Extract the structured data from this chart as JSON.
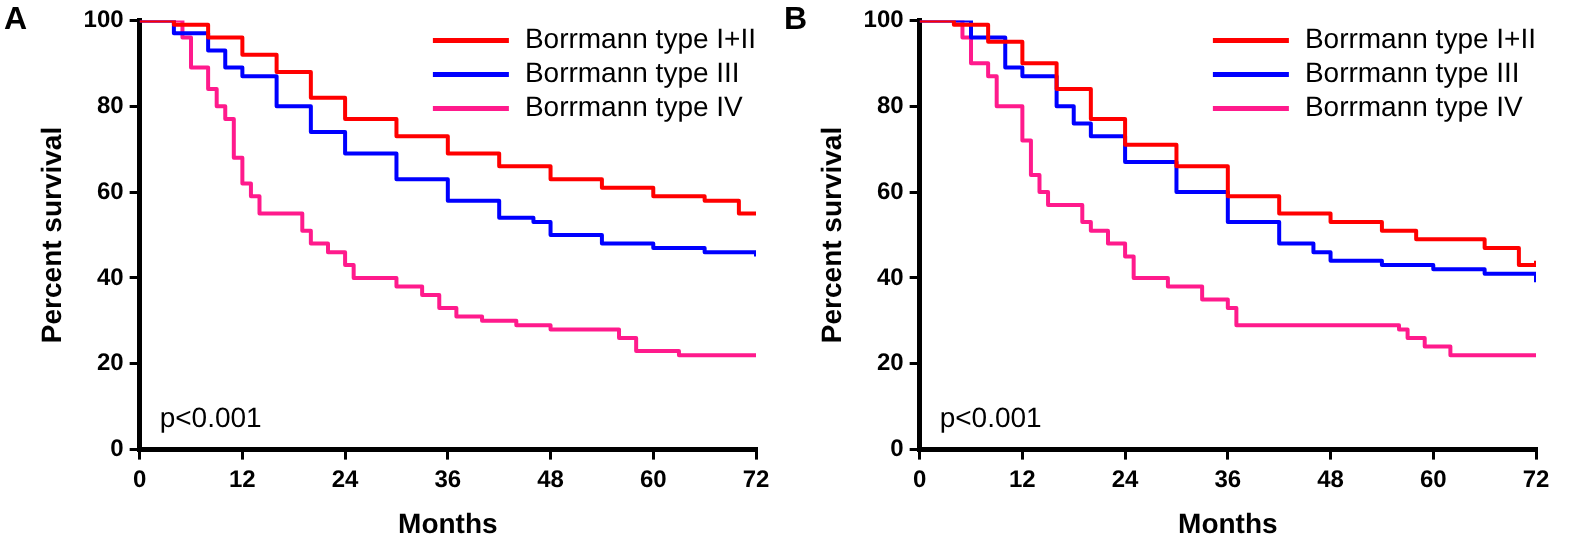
{
  "chart_data": [
    {
      "type": "step",
      "title": "A",
      "xlabel": "Months",
      "ylabel": "Percent survival",
      "annotations": [
        "p<0.001"
      ],
      "xlim": [
        0,
        72
      ],
      "xticks": [
        0,
        12,
        24,
        36,
        48,
        60,
        72
      ],
      "ylim": [
        0,
        100
      ],
      "yticks": [
        0,
        20,
        40,
        60,
        80,
        100
      ],
      "grid": false,
      "legend": "top right",
      "series": [
        {
          "name": "Borrmann type I+II",
          "color": "#ff0000",
          "x": [
            0,
            4,
            8,
            12,
            16,
            20,
            24,
            30,
            36,
            42,
            48,
            54,
            60,
            66,
            70,
            72
          ],
          "values": [
            100,
            99,
            96,
            92,
            88,
            82,
            77,
            73,
            69,
            66,
            63,
            61,
            59,
            58,
            55,
            55
          ]
        },
        {
          "name": "Borrmann type III",
          "color": "#0000ff",
          "x": [
            0,
            4,
            8,
            10,
            12,
            16,
            20,
            24,
            30,
            36,
            42,
            46,
            48,
            54,
            60,
            66,
            72
          ],
          "values": [
            100,
            97,
            93,
            89,
            87,
            80,
            74,
            69,
            63,
            58,
            54,
            53,
            50,
            48,
            47,
            46,
            45
          ]
        },
        {
          "name": "Borrmann type IV",
          "color": "#ff1a8c",
          "x": [
            0,
            5,
            6,
            8,
            9,
            10,
            11,
            12,
            13,
            14,
            18,
            19,
            20,
            22,
            24,
            25,
            30,
            33,
            35,
            37,
            40,
            44,
            48,
            56,
            58,
            63,
            72
          ],
          "values": [
            100,
            96,
            89,
            84,
            80,
            77,
            68,
            62,
            59,
            55,
            55,
            51,
            48,
            46,
            43,
            40,
            38,
            36,
            33,
            31,
            30,
            29,
            28,
            26,
            23,
            22,
            22
          ]
        }
      ]
    },
    {
      "type": "step",
      "title": "B",
      "xlabel": "Months",
      "ylabel": "Percent survival",
      "annotations": [
        "p<0.001"
      ],
      "xlim": [
        0,
        72
      ],
      "xticks": [
        0,
        12,
        24,
        36,
        48,
        60,
        72
      ],
      "ylim": [
        0,
        100
      ],
      "yticks": [
        0,
        20,
        40,
        60,
        80,
        100
      ],
      "grid": false,
      "legend": "top right",
      "series": [
        {
          "name": "Borrmann type I+II",
          "color": "#ff0000",
          "x": [
            0,
            4,
            8,
            12,
            16,
            20,
            24,
            30,
            36,
            42,
            48,
            54,
            58,
            60,
            66,
            70,
            72
          ],
          "values": [
            100,
            99,
            95,
            90,
            84,
            77,
            71,
            66,
            59,
            55,
            53,
            51,
            49,
            49,
            47,
            43,
            44
          ]
        },
        {
          "name": "Borrmann type III",
          "color": "#0000ff",
          "x": [
            0,
            6,
            10,
            12,
            16,
            18,
            20,
            24,
            30,
            36,
            42,
            46,
            48,
            54,
            60,
            66,
            70,
            72
          ],
          "values": [
            100,
            96,
            89,
            87,
            80,
            76,
            73,
            67,
            60,
            53,
            48,
            46,
            44,
            43,
            42,
            41,
            41,
            39
          ]
        },
        {
          "name": "Borrmann type IV",
          "color": "#ff1a8c",
          "x": [
            0,
            5,
            6,
            8,
            9,
            11,
            12,
            13,
            14,
            15,
            18,
            19,
            20,
            22,
            24,
            25,
            28,
            29,
            32,
            33,
            35,
            36,
            37,
            50,
            56,
            57,
            59,
            62,
            72
          ],
          "values": [
            100,
            96,
            90,
            87,
            80,
            80,
            72,
            64,
            60,
            57,
            57,
            53,
            51,
            48,
            45,
            40,
            40,
            38,
            38,
            35,
            35,
            33,
            29,
            29,
            28,
            26,
            24,
            22,
            22
          ]
        }
      ]
    }
  ]
}
